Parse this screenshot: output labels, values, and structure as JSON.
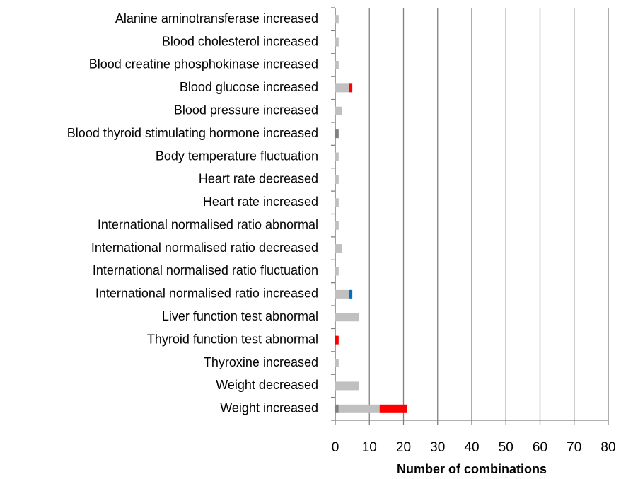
{
  "chart_data": {
    "type": "bar",
    "orientation": "horizontal",
    "stacked": true,
    "grid": true,
    "categories": [
      "Alanine aminotransferase increased",
      "Blood cholesterol increased",
      "Blood creatine phosphokinase increased",
      "Blood glucose increased",
      "Blood pressure increased",
      "Blood thyroid stimulating hormone increased",
      "Body temperature fluctuation",
      "Heart rate decreased",
      "Heart rate increased",
      "International normalised ratio abnormal",
      "International normalised ratio decreased",
      "International normalised ratio fluctuation",
      "International normalised ratio increased",
      "Liver function test abnormal",
      "Thyroid function test abnormal",
      "Thyroxine increased",
      "Weight decreased",
      "Weight increased"
    ],
    "series": [
      {
        "color": "#808080",
        "values": [
          0,
          0,
          0,
          0,
          0,
          1,
          0,
          0,
          0,
          0,
          0,
          0,
          0,
          0,
          0,
          0,
          0,
          1
        ]
      },
      {
        "color": "#c0c0c0",
        "values": [
          1,
          1,
          1,
          4,
          2,
          0,
          1,
          1,
          1,
          1,
          2,
          1,
          4,
          7,
          0,
          1,
          7,
          12
        ]
      },
      {
        "color": "#ff0000",
        "values": [
          0,
          0,
          0,
          1,
          0,
          0,
          0,
          0,
          0,
          0,
          0,
          0,
          0,
          0,
          1,
          0,
          0,
          8
        ]
      },
      {
        "color": "#0070c0",
        "values": [
          0,
          0,
          0,
          0,
          0,
          0,
          0,
          0,
          0,
          0,
          0,
          0,
          1,
          0,
          0,
          0,
          0,
          0
        ]
      }
    ],
    "xlim": [
      0,
      80
    ],
    "xticks": [
      0,
      10,
      20,
      30,
      40,
      50,
      60,
      70,
      80
    ],
    "x_label": "Number of combinations"
  }
}
